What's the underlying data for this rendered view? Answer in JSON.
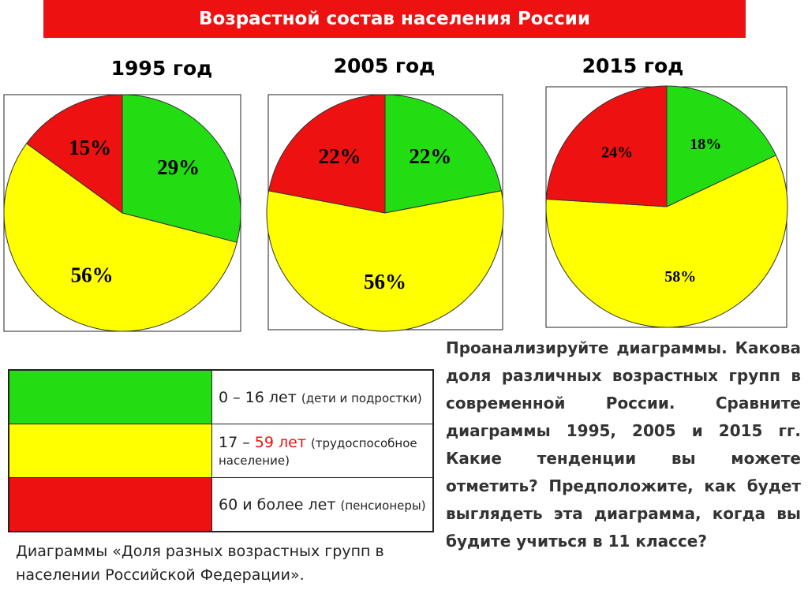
{
  "title": "Возрастной состав населения России",
  "chart_data": [
    {
      "type": "pie",
      "title": "1995 год",
      "values": [
        29,
        56,
        15
      ],
      "value_labels": [
        "29%",
        "56%",
        "15%"
      ],
      "colors": [
        "#22dd11",
        "#ffff00",
        "#ee1111"
      ]
    },
    {
      "type": "pie",
      "title": "2005 год",
      "values": [
        22,
        56,
        22
      ],
      "value_labels": [
        "22%",
        "56%",
        "22%"
      ],
      "colors": [
        "#22dd11",
        "#ffff00",
        "#ee1111"
      ]
    },
    {
      "type": "pie",
      "title": "2015 год",
      "values": [
        18,
        58,
        24
      ],
      "value_labels": [
        "18%",
        "58%",
        "24%"
      ],
      "colors": [
        "#22dd11",
        "#ffff00",
        "#ee1111"
      ]
    }
  ],
  "legend": [
    {
      "color": "#22dd11",
      "label": "0 – 16 лет",
      "note": "(дети и подростки)"
    },
    {
      "color": "#ffff00",
      "label": "17 –",
      "highlight": "59 лет",
      "note": "(трудоспособное население)"
    },
    {
      "color": "#ee1111",
      "label": "60 и более лет",
      "note": "(пенсионеры)"
    }
  ],
  "caption": "Диаграммы «Доля разных возрастных групп в населении Российской Федерации».",
  "question": "Проанализируйте диаграммы. Какова доля различных возрастных групп в современной России. Сравните диаграммы 1995, 2005 и 2015 гг. Какие тенденции вы можете отметить? Предположите, как будет выглядеть эта диаграмма, когда вы будите учиться в 11 классе?"
}
